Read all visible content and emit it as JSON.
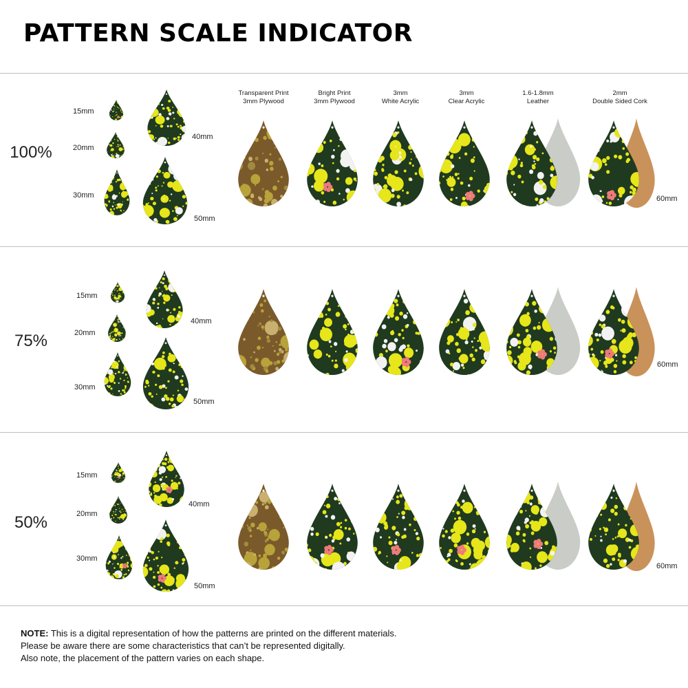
{
  "title": "PATTERN SCALE INDICATOR",
  "sizes": [
    "15mm",
    "20mm",
    "30mm",
    "40mm",
    "50mm"
  ],
  "material_size": "60mm",
  "materials": [
    {
      "line1": "Transparent Print",
      "line2": "3mm Plywood"
    },
    {
      "line1": "Bright Print",
      "line2": "3mm Plywood"
    },
    {
      "line1": "3mm",
      "line2": "White Acrylic"
    },
    {
      "line1": "3mm",
      "line2": "Clear Acrylic"
    },
    {
      "line1": "1.6-1.8mm",
      "line2": "Leather"
    },
    {
      "line1": "2mm",
      "line2": "Double Sided Cork"
    }
  ],
  "sections": [
    {
      "scale": "100%"
    },
    {
      "scale": "75%"
    },
    {
      "scale": "50%"
    }
  ],
  "note": {
    "prefix": "NOTE:",
    "line1": " This is a digital representation of how the patterns are printed on the different materials.",
    "line2": "Please be aware there are some characteristics that can’t be represented digitally.",
    "line3": "Also note, the placement of the pattern varies on each shape."
  },
  "colors": {
    "background": "#ffffff",
    "pattern_dark_green": "#1f3a1f",
    "pattern_yellow": "#e6e61a",
    "pattern_white": "#f2f2f2",
    "pattern_pink": "#ee7a7a",
    "wood_brown": "#7a5a2a",
    "leather_grey": "#c9ccc7",
    "cork_tan": "#c9925a",
    "rule": "#bdbdbd"
  }
}
